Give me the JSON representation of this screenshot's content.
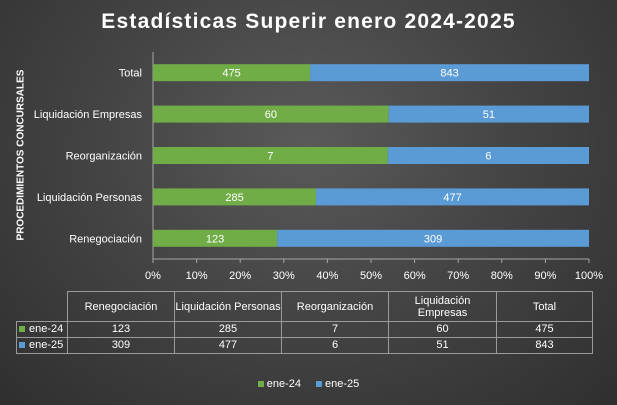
{
  "chart_data": {
    "type": "bar",
    "orientation": "horizontal",
    "stacking": "percent",
    "title": "Estadísticas Superir enero 2024-2025",
    "ylabel": "PROCEDIMIENTOS CONCURSALES",
    "xlim": [
      0,
      100
    ],
    "x_ticks": [
      "0%",
      "10%",
      "20%",
      "30%",
      "40%",
      "50%",
      "60%",
      "70%",
      "80%",
      "90%",
      "100%"
    ],
    "categories": [
      "Renegociación",
      "Liquidación Personas",
      "Reorganización",
      "Liquidación Empresas",
      "Total"
    ],
    "series": [
      {
        "name": "ene-24",
        "color": "#70ad47",
        "values": [
          123,
          285,
          7,
          60,
          475
        ]
      },
      {
        "name": "ene-25",
        "color": "#5b9bd5",
        "values": [
          309,
          477,
          6,
          51,
          843
        ]
      }
    ],
    "legend_position": "bottom",
    "grid": false
  },
  "table": {
    "headers": [
      "Renegociación",
      "Liquidación Personas",
      "Reorganización",
      "Liquidación Empresas",
      "Total"
    ]
  },
  "legend": {
    "items": [
      "ene-24",
      "ene-25"
    ]
  }
}
